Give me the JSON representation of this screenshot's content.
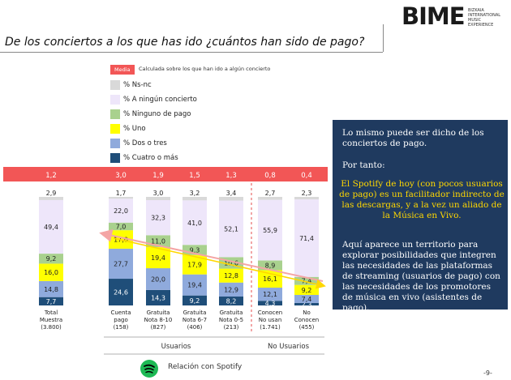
{
  "header": {
    "logo_text": "BIME",
    "logo_sub": "BIZKAIA\nINTERNATIONAL\nMUSIC EXPERIENCE",
    "title": "De los conciertos a los que has ido ¿cuántos han sido de pago?"
  },
  "media_note": {
    "tag": "Media",
    "text": "Calculada sobre los que han ido a algún concierto"
  },
  "colors": {
    "ns_nc": "#d9d9d9",
    "ninguno": "#eee6fa",
    "ninguno_pago": "#a9d18e",
    "uno": "#ffff00",
    "dos_tres": "#8faadc",
    "cuatro_mas": "#1f4e79",
    "media_band": "#f25656",
    "panel": "#1f3a5f",
    "arrow_red": "#f4a5a5",
    "arrow_yellow": "#ffd700"
  },
  "chart_data": {
    "type": "bar",
    "stacked": true,
    "categories": [
      [
        "Total",
        "Muestra",
        "(3.800)"
      ],
      [
        "Cuenta",
        "pago",
        "(158)"
      ],
      [
        "Gratuita",
        "Nota 8-10",
        "(827)"
      ],
      [
        "Gratuita",
        "Nota 6-7",
        "(406)"
      ],
      [
        "Gratuita",
        "Nota 0-5",
        "(213)"
      ],
      [
        "Conocen",
        "No usan",
        "(1.741)"
      ],
      [
        "No",
        "Conocen",
        "(455)"
      ]
    ],
    "media": [
      "1,2",
      "3,0",
      "1,9",
      "1,5",
      "1,3",
      "0,8",
      "0,4"
    ],
    "series": [
      {
        "name": "% Cuatro o más",
        "key": "cuatro_mas",
        "values": [
          7.7,
          24.6,
          14.3,
          9.2,
          8.2,
          4.3,
          2.3
        ]
      },
      {
        "name": "% Dos o tres",
        "key": "dos_tres",
        "values": [
          14.8,
          27.7,
          20.0,
          19.4,
          12.9,
          12.1,
          7.4
        ]
      },
      {
        "name": "% Uno",
        "key": "uno",
        "values": [
          16.0,
          17.0,
          19.4,
          17.9,
          12.8,
          16.1,
          9.2
        ]
      },
      {
        "name": "% Ninguno de pago",
        "key": "ninguno_pago",
        "values": [
          9.2,
          7.0,
          11.0,
          9.3,
          10.6,
          8.9,
          7.4
        ]
      },
      {
        "name": "% A ningún concierto",
        "key": "ninguno",
        "values": [
          49.4,
          22.0,
          32.3,
          41.0,
          52.1,
          55.9,
          71.4
        ]
      },
      {
        "name": "% Ns-nc",
        "key": "ns_nc",
        "values": [
          2.9,
          1.7,
          3.0,
          3.2,
          3.4,
          2.7,
          2.3
        ]
      }
    ],
    "labels": [
      [
        "7,7",
        "14,8",
        "16,0",
        "9,2",
        "49,4",
        "2,9"
      ],
      [
        "24,6",
        "27,7",
        "17,0",
        "7,0",
        "22,0",
        "1,7"
      ],
      [
        "14,3",
        "20,0",
        "19,4",
        "11,0",
        "32,3",
        "3,0"
      ],
      [
        "9,2",
        "19,4",
        "17,9",
        "9,3",
        "41,0",
        "3,2"
      ],
      [
        "8,2",
        "12,9",
        "12,8",
        "10,6",
        "52,1",
        "3,4"
      ],
      [
        "4,3",
        "12,1",
        "16,1",
        "8,9",
        "55,9",
        "2,7"
      ],
      [
        "2,3",
        "7,4",
        "9,2",
        "7,4",
        "71,4",
        "2,3"
      ]
    ],
    "groups": [
      {
        "name": "Usuarios",
        "from": 1,
        "to": 4
      },
      {
        "name": "No Usuarios",
        "from": 5,
        "to": 6
      }
    ],
    "legend_order": [
      "% Ns-nc",
      "% A ningún concierto",
      "% Ninguno de pago",
      "% Uno",
      "% Dos o tres",
      "% Cuatro o más"
    ]
  },
  "footer": {
    "relation_label": "Relación con Spotify",
    "page_number": "-9-"
  },
  "panel": {
    "p1": "Lo mismo puede ser dicho de los conciertos de pago.",
    "p2": "Por tanto:",
    "p3": "El Spotify de hoy (con pocos usuarios de pago) es un facilitador indirecto de las descargas, y a la vez  un aliado de la  Música en Vivo.",
    "p4": "Aquí aparece un territorio para explorar posibilidades que integren las necesidades de las plataformas de streaming (usuarios de pago) con las necesidades de los promotores de música en vivo (asistentes de pago)."
  }
}
